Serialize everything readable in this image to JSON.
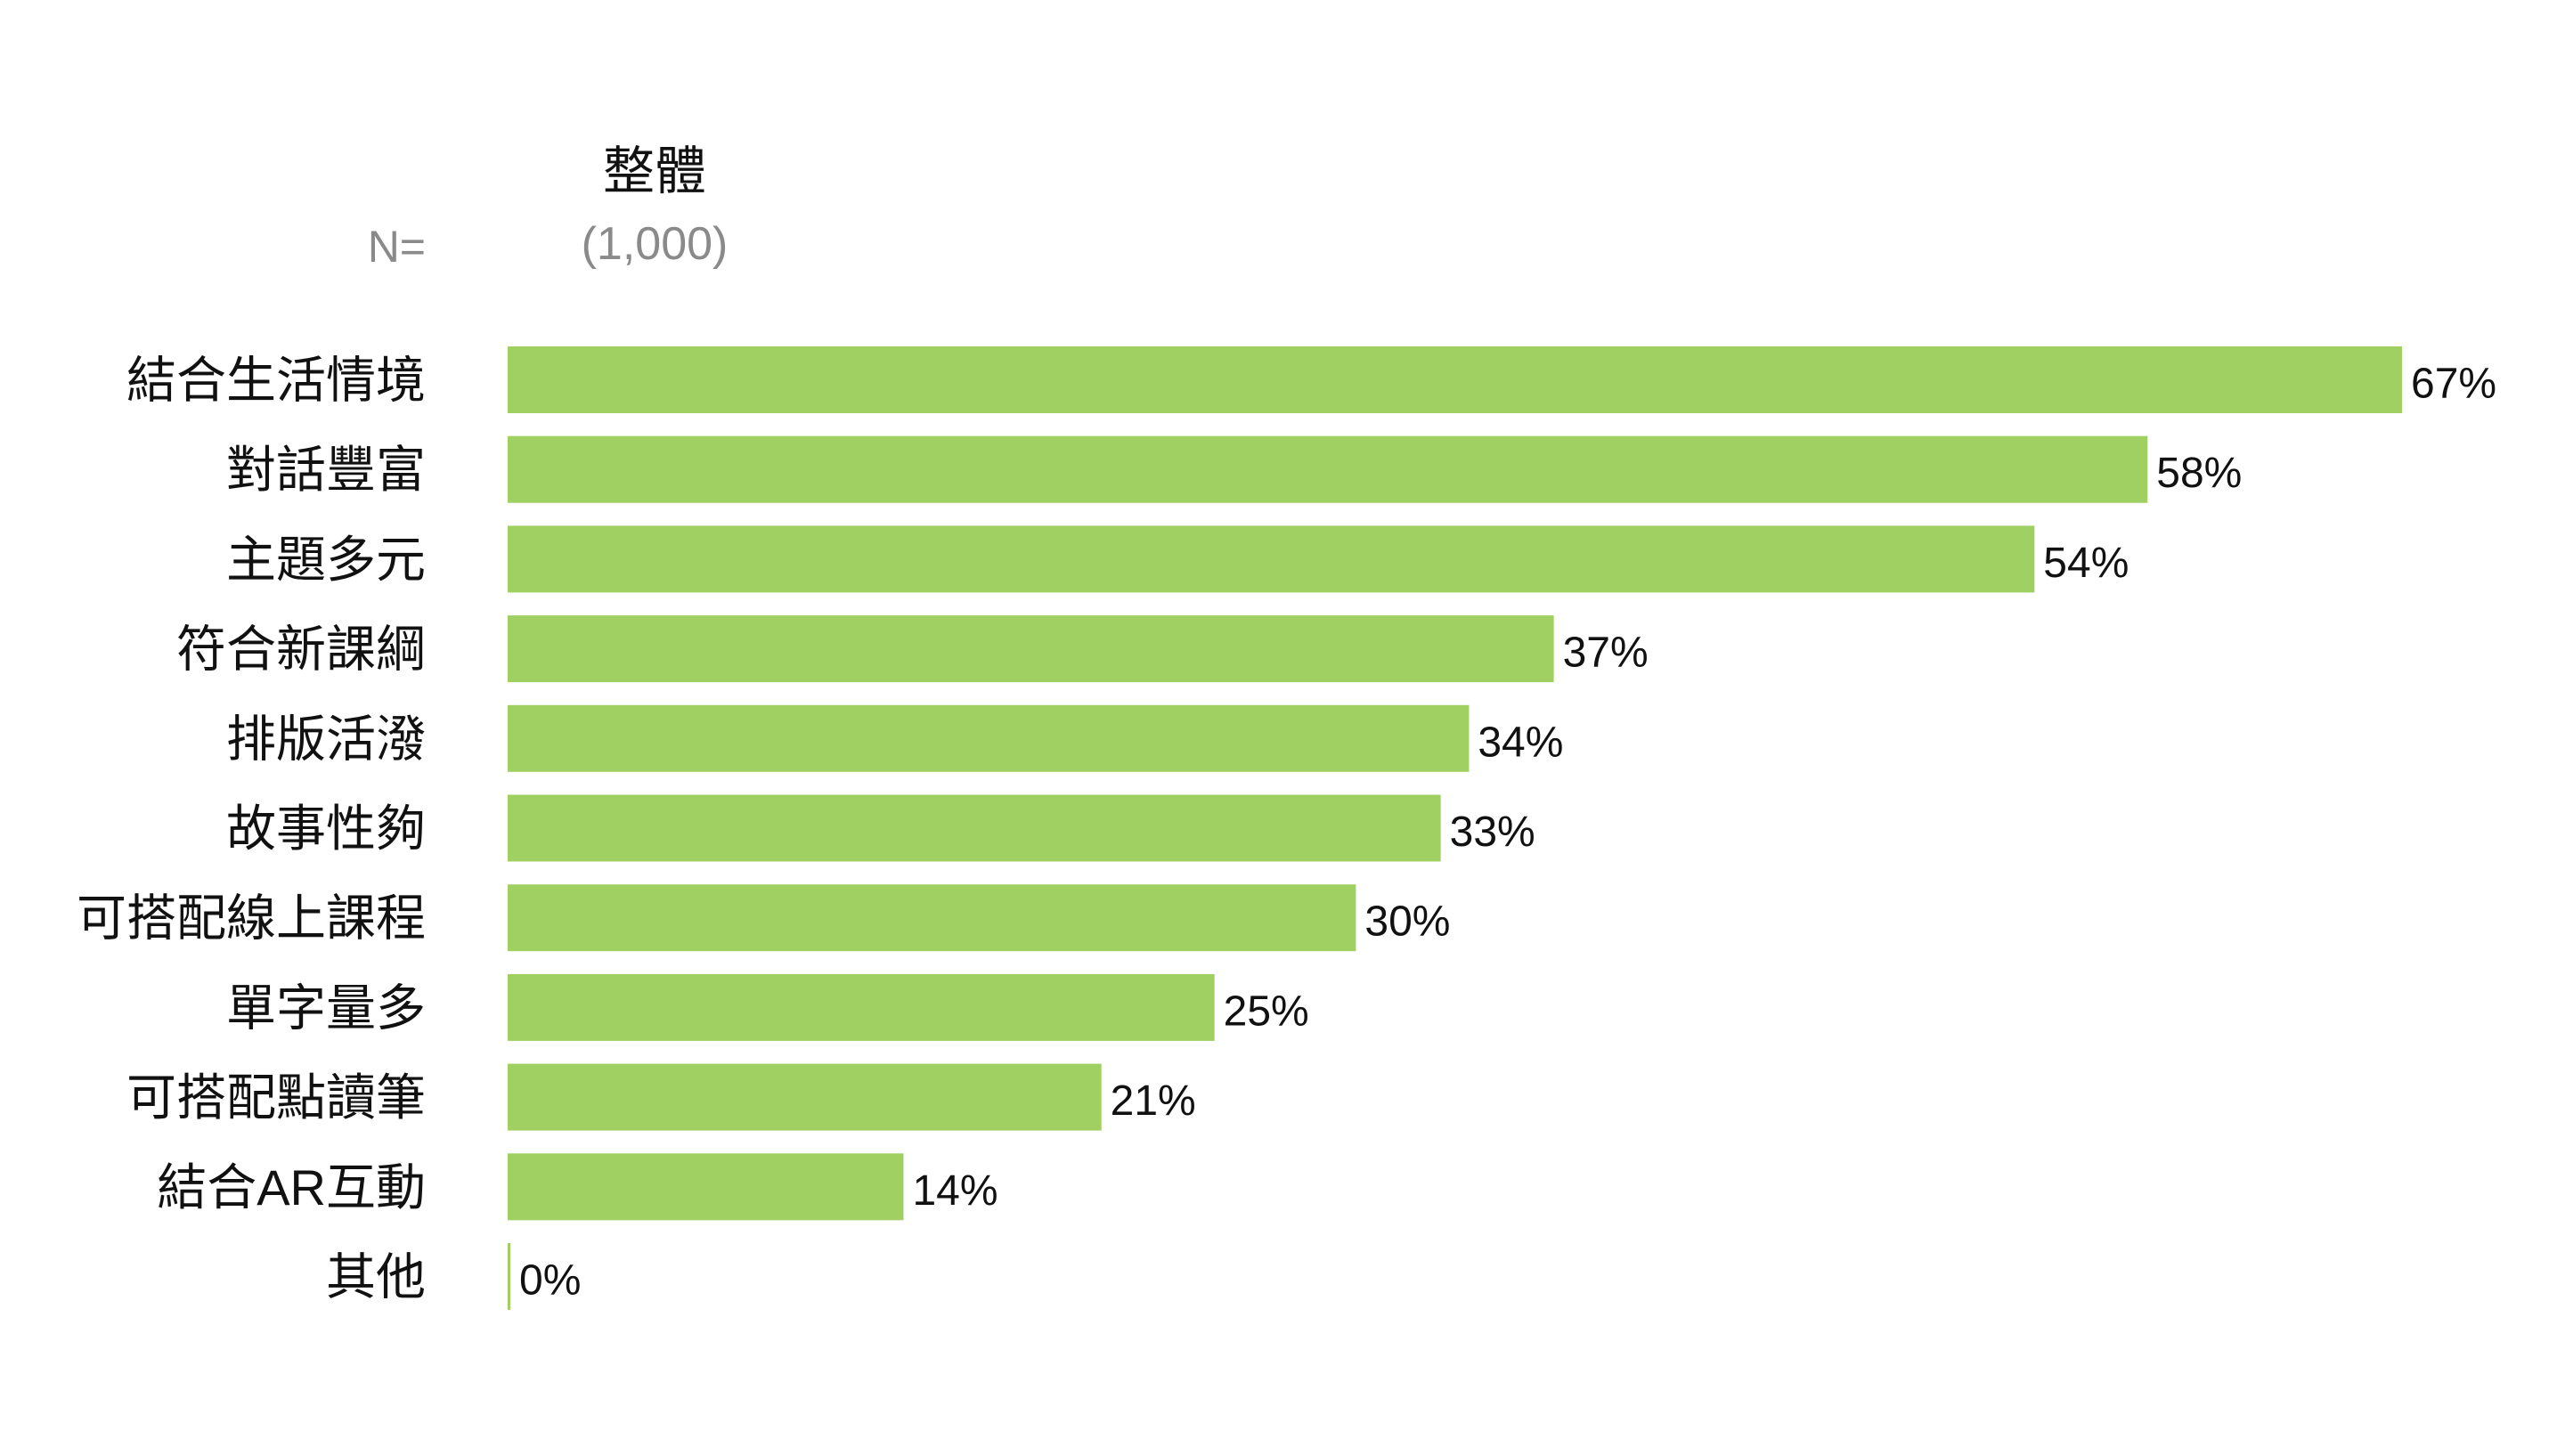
{
  "chart_data": {
    "type": "bar",
    "orientation": "horizontal",
    "title": "整體",
    "n_label": "N=",
    "n_value": "(1,000)",
    "categories": [
      "結合生活情境",
      "對話豐富",
      "主題多元",
      "符合新課綱",
      "排版活潑",
      "故事性夠",
      "可搭配線上課程",
      "單字量多",
      "可搭配點讀筆",
      "結合AR互動",
      "其他"
    ],
    "values": [
      67,
      58,
      54,
      37,
      34,
      33,
      30,
      25,
      21,
      14,
      0
    ],
    "value_labels": [
      "67%",
      "58%",
      "54%",
      "37%",
      "34%",
      "33%",
      "30%",
      "25%",
      "21%",
      "14%",
      "0%"
    ],
    "xlabel": "",
    "ylabel": "",
    "xlim": [
      0,
      67
    ],
    "grid": false,
    "legend": "none",
    "bar_color": "#a0cf62"
  }
}
